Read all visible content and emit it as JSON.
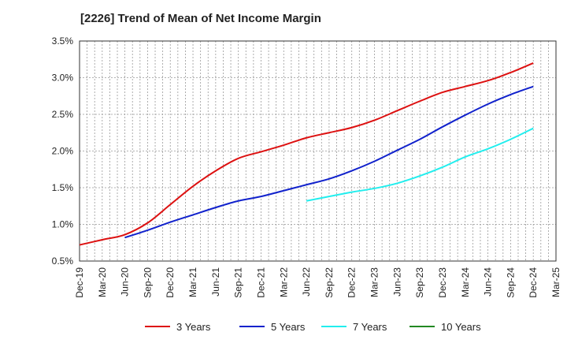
{
  "chart_data": {
    "type": "line",
    "title": "[2226]  Trend of Mean of Net Income Margin",
    "xlabel": "",
    "ylabel": "",
    "x": [
      "Dec-19",
      "Mar-20",
      "Jun-20",
      "Sep-20",
      "Dec-20",
      "Mar-21",
      "Jun-21",
      "Sep-21",
      "Dec-21",
      "Mar-22",
      "Jun-22",
      "Sep-22",
      "Dec-22",
      "Mar-23",
      "Jun-23",
      "Sep-23",
      "Dec-23",
      "Mar-24",
      "Jun-24",
      "Sep-24",
      "Dec-24",
      "Mar-25"
    ],
    "ylim": [
      0.5,
      3.5
    ],
    "yticks": [
      "3.5%",
      "3.0%",
      "2.5%",
      "2.0%",
      "1.5%",
      "1.0%",
      "0.5%"
    ],
    "ytick_values": [
      3.5,
      3.0,
      2.5,
      2.0,
      1.5,
      1.0,
      0.5
    ],
    "grid": true,
    "legend_position": "bottom",
    "series": [
      {
        "name": "3 Years",
        "color": "#dd1111",
        "values": [
          0.72,
          0.79,
          0.86,
          1.02,
          1.27,
          1.52,
          1.73,
          1.9,
          1.99,
          2.08,
          2.18,
          2.25,
          2.32,
          2.42,
          2.55,
          2.68,
          2.8,
          2.88,
          2.96,
          3.07,
          3.2,
          null
        ]
      },
      {
        "name": "5 Years",
        "color": "#1122cc",
        "values": [
          null,
          null,
          0.82,
          0.92,
          1.03,
          1.13,
          1.23,
          1.32,
          1.38,
          1.46,
          1.54,
          1.62,
          1.73,
          1.86,
          2.01,
          2.16,
          2.33,
          2.49,
          2.64,
          2.77,
          2.88,
          null
        ]
      },
      {
        "name": "7 Years",
        "color": "#22eeee",
        "values": [
          null,
          null,
          null,
          null,
          null,
          null,
          null,
          null,
          null,
          null,
          1.32,
          1.38,
          1.44,
          1.49,
          1.56,
          1.66,
          1.78,
          1.92,
          2.03,
          2.16,
          2.31,
          null
        ]
      },
      {
        "name": "10 Years",
        "color": "#228822",
        "values": [
          null,
          null,
          null,
          null,
          null,
          null,
          null,
          null,
          null,
          null,
          null,
          null,
          null,
          null,
          null,
          null,
          null,
          null,
          null,
          null,
          null,
          null
        ]
      }
    ]
  }
}
